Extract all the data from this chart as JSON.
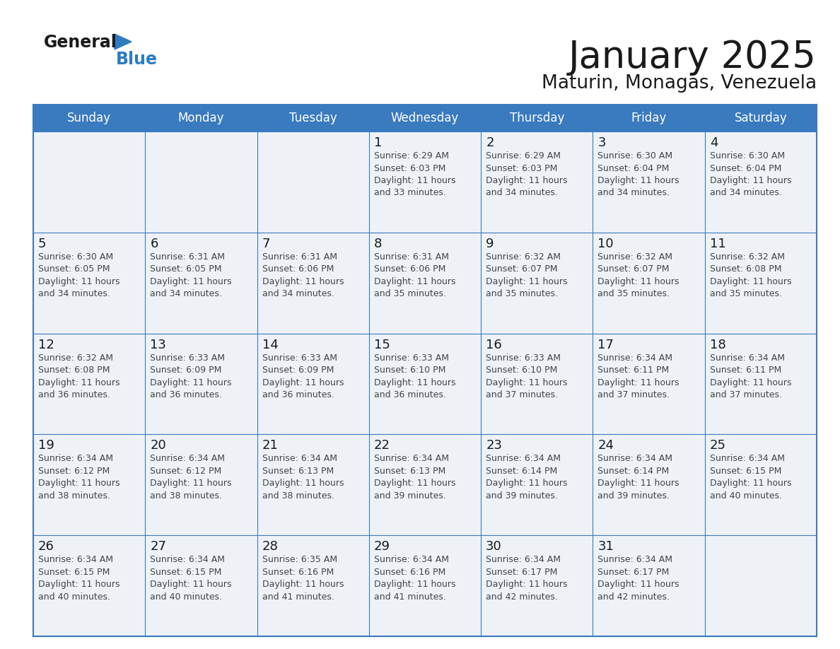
{
  "title": "January 2025",
  "subtitle": "Maturin, Monagas, Venezuela",
  "days_of_week": [
    "Sunday",
    "Monday",
    "Tuesday",
    "Wednesday",
    "Thursday",
    "Friday",
    "Saturday"
  ],
  "header_bg": "#3a7abf",
  "header_text_color": "#ffffff",
  "cell_bg_light": "#eef2f7",
  "cell_border_color": "#3a7abf",
  "title_color": "#1a1a1a",
  "subtitle_color": "#1a1a1a",
  "day_number_color": "#1a1a1a",
  "cell_text_color": "#444444",
  "logo_general_color": "#1a1a1a",
  "logo_blue_color": "#2d7cc1",
  "calendar": [
    [
      null,
      null,
      null,
      {
        "day": 1,
        "sunrise": "6:29 AM",
        "sunset": "6:03 PM",
        "daylight_hours": 11,
        "daylight_minutes": 33
      },
      {
        "day": 2,
        "sunrise": "6:29 AM",
        "sunset": "6:03 PM",
        "daylight_hours": 11,
        "daylight_minutes": 34
      },
      {
        "day": 3,
        "sunrise": "6:30 AM",
        "sunset": "6:04 PM",
        "daylight_hours": 11,
        "daylight_minutes": 34
      },
      {
        "day": 4,
        "sunrise": "6:30 AM",
        "sunset": "6:04 PM",
        "daylight_hours": 11,
        "daylight_minutes": 34
      }
    ],
    [
      {
        "day": 5,
        "sunrise": "6:30 AM",
        "sunset": "6:05 PM",
        "daylight_hours": 11,
        "daylight_minutes": 34
      },
      {
        "day": 6,
        "sunrise": "6:31 AM",
        "sunset": "6:05 PM",
        "daylight_hours": 11,
        "daylight_minutes": 34
      },
      {
        "day": 7,
        "sunrise": "6:31 AM",
        "sunset": "6:06 PM",
        "daylight_hours": 11,
        "daylight_minutes": 34
      },
      {
        "day": 8,
        "sunrise": "6:31 AM",
        "sunset": "6:06 PM",
        "daylight_hours": 11,
        "daylight_minutes": 35
      },
      {
        "day": 9,
        "sunrise": "6:32 AM",
        "sunset": "6:07 PM",
        "daylight_hours": 11,
        "daylight_minutes": 35
      },
      {
        "day": 10,
        "sunrise": "6:32 AM",
        "sunset": "6:07 PM",
        "daylight_hours": 11,
        "daylight_minutes": 35
      },
      {
        "day": 11,
        "sunrise": "6:32 AM",
        "sunset": "6:08 PM",
        "daylight_hours": 11,
        "daylight_minutes": 35
      }
    ],
    [
      {
        "day": 12,
        "sunrise": "6:32 AM",
        "sunset": "6:08 PM",
        "daylight_hours": 11,
        "daylight_minutes": 36
      },
      {
        "day": 13,
        "sunrise": "6:33 AM",
        "sunset": "6:09 PM",
        "daylight_hours": 11,
        "daylight_minutes": 36
      },
      {
        "day": 14,
        "sunrise": "6:33 AM",
        "sunset": "6:09 PM",
        "daylight_hours": 11,
        "daylight_minutes": 36
      },
      {
        "day": 15,
        "sunrise": "6:33 AM",
        "sunset": "6:10 PM",
        "daylight_hours": 11,
        "daylight_minutes": 36
      },
      {
        "day": 16,
        "sunrise": "6:33 AM",
        "sunset": "6:10 PM",
        "daylight_hours": 11,
        "daylight_minutes": 37
      },
      {
        "day": 17,
        "sunrise": "6:34 AM",
        "sunset": "6:11 PM",
        "daylight_hours": 11,
        "daylight_minutes": 37
      },
      {
        "day": 18,
        "sunrise": "6:34 AM",
        "sunset": "6:11 PM",
        "daylight_hours": 11,
        "daylight_minutes": 37
      }
    ],
    [
      {
        "day": 19,
        "sunrise": "6:34 AM",
        "sunset": "6:12 PM",
        "daylight_hours": 11,
        "daylight_minutes": 38
      },
      {
        "day": 20,
        "sunrise": "6:34 AM",
        "sunset": "6:12 PM",
        "daylight_hours": 11,
        "daylight_minutes": 38
      },
      {
        "day": 21,
        "sunrise": "6:34 AM",
        "sunset": "6:13 PM",
        "daylight_hours": 11,
        "daylight_minutes": 38
      },
      {
        "day": 22,
        "sunrise": "6:34 AM",
        "sunset": "6:13 PM",
        "daylight_hours": 11,
        "daylight_minutes": 39
      },
      {
        "day": 23,
        "sunrise": "6:34 AM",
        "sunset": "6:14 PM",
        "daylight_hours": 11,
        "daylight_minutes": 39
      },
      {
        "day": 24,
        "sunrise": "6:34 AM",
        "sunset": "6:14 PM",
        "daylight_hours": 11,
        "daylight_minutes": 39
      },
      {
        "day": 25,
        "sunrise": "6:34 AM",
        "sunset": "6:15 PM",
        "daylight_hours": 11,
        "daylight_minutes": 40
      }
    ],
    [
      {
        "day": 26,
        "sunrise": "6:34 AM",
        "sunset": "6:15 PM",
        "daylight_hours": 11,
        "daylight_minutes": 40
      },
      {
        "day": 27,
        "sunrise": "6:34 AM",
        "sunset": "6:15 PM",
        "daylight_hours": 11,
        "daylight_minutes": 40
      },
      {
        "day": 28,
        "sunrise": "6:35 AM",
        "sunset": "6:16 PM",
        "daylight_hours": 11,
        "daylight_minutes": 41
      },
      {
        "day": 29,
        "sunrise": "6:34 AM",
        "sunset": "6:16 PM",
        "daylight_hours": 11,
        "daylight_minutes": 41
      },
      {
        "day": 30,
        "sunrise": "6:34 AM",
        "sunset": "6:17 PM",
        "daylight_hours": 11,
        "daylight_minutes": 42
      },
      {
        "day": 31,
        "sunrise": "6:34 AM",
        "sunset": "6:17 PM",
        "daylight_hours": 11,
        "daylight_minutes": 42
      },
      null
    ]
  ]
}
